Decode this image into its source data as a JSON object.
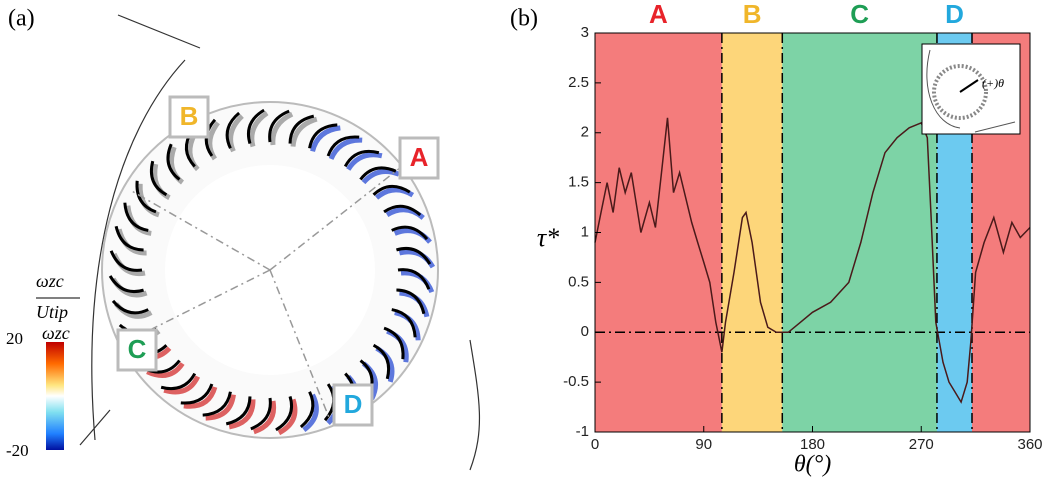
{
  "panel_a": {
    "label": "(a)",
    "region_labels": [
      {
        "text": "A",
        "color": "#e8232a"
      },
      {
        "text": "B",
        "color": "#f0b62a"
      },
      {
        "text": "C",
        "color": "#1e9e55"
      },
      {
        "text": "D",
        "color": "#22a8dd"
      }
    ],
    "colorbar": {
      "numerator": "ωzc",
      "denominator": "Utip",
      "ticks": [
        20,
        -20
      ]
    }
  },
  "chart_data": {
    "type": "line",
    "panel_label": "(b)",
    "xlabel": "θ(°)",
    "ylabel": "τ*",
    "inset_label": "(+)θ",
    "xlim": [
      0,
      360
    ],
    "xticks": [
      0,
      90,
      180,
      270,
      360
    ],
    "ylim": [
      -1,
      3
    ],
    "yticks": [
      -1,
      -0.5,
      0,
      0.5,
      1,
      1.5,
      2,
      2.5,
      3
    ],
    "reference_line": 0,
    "regions": [
      {
        "label": "A",
        "start": 0,
        "end": 105,
        "color": "#f47c7c",
        "label_color": "#e8232a"
      },
      {
        "label": "B",
        "start": 105,
        "end": 155,
        "color": "#fdd67a",
        "label_color": "#f0b62a"
      },
      {
        "label": "C",
        "start": 155,
        "end": 283,
        "color": "#7dd3a6",
        "label_color": "#1e9e55"
      },
      {
        "label": "D",
        "start": 283,
        "end": 312,
        "color": "#6ccaf0",
        "label_color": "#22a8dd"
      },
      {
        "label": null,
        "start": 312,
        "end": 360,
        "color": "#f47c7c",
        "label_color": "#e8232a"
      }
    ],
    "color": "#4a1a1a",
    "x": [
      0,
      5,
      10,
      15,
      20,
      25,
      30,
      38,
      45,
      50,
      55,
      60,
      65,
      70,
      80,
      85,
      90,
      95,
      100,
      105,
      108,
      115,
      122,
      125,
      130,
      137,
      143,
      150,
      160,
      170,
      180,
      195,
      210,
      220,
      230,
      240,
      250,
      260,
      270,
      275,
      278,
      282,
      288,
      293,
      298,
      303,
      308,
      311,
      315,
      322,
      330,
      338,
      345,
      352,
      360
    ],
    "values": [
      0.9,
      1.2,
      1.5,
      1.2,
      1.65,
      1.4,
      1.6,
      1.0,
      1.3,
      1.05,
      1.6,
      2.15,
      1.4,
      1.6,
      1.1,
      0.9,
      0.7,
      0.5,
      0.1,
      -0.2,
      0.1,
      0.6,
      1.15,
      1.2,
      0.9,
      0.3,
      0.05,
      0,
      0,
      0.1,
      0.2,
      0.3,
      0.5,
      0.9,
      1.4,
      1.8,
      1.95,
      2.05,
      2.1,
      1.95,
      1.2,
      0.1,
      -0.3,
      -0.5,
      -0.6,
      -0.7,
      -0.5,
      -0.1,
      0.6,
      0.9,
      1.15,
      0.8,
      1.1,
      0.95,
      1.05
    ]
  }
}
